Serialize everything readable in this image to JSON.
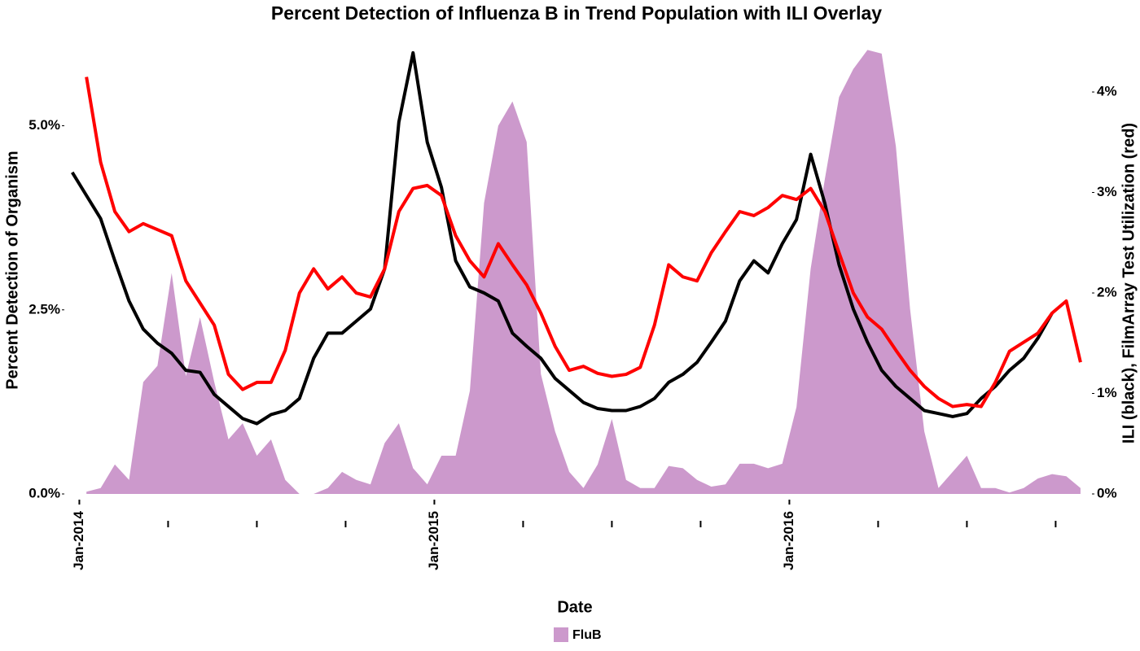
{
  "chart_data": {
    "type": "area-line",
    "title": "Percent Detection of Influenza B in Trend Population with ILI Overlay",
    "x_label": "Date",
    "y_label": "Percent Detection of Organism",
    "y2_label": "ILI (black), FilmArray Test Utilization (red)",
    "x": [
      2013.98,
      2014.02,
      2014.06,
      2014.1,
      2014.14,
      2014.18,
      2014.22,
      2014.26,
      2014.3,
      2014.34,
      2014.38,
      2014.42,
      2014.46,
      2014.5,
      2014.54,
      2014.58,
      2014.62,
      2014.66,
      2014.7,
      2014.74,
      2014.78,
      2014.82,
      2014.86,
      2014.9,
      2014.94,
      2014.98,
      2015.02,
      2015.06,
      2015.1,
      2015.14,
      2015.18,
      2015.22,
      2015.26,
      2015.3,
      2015.34,
      2015.38,
      2015.42,
      2015.46,
      2015.5,
      2015.54,
      2015.58,
      2015.62,
      2015.66,
      2015.7,
      2015.74,
      2015.78,
      2015.82,
      2015.86,
      2015.9,
      2015.94,
      2015.98,
      2016.02,
      2016.06,
      2016.1,
      2016.14,
      2016.18,
      2016.22,
      2016.26,
      2016.3,
      2016.34,
      2016.38,
      2016.42,
      2016.46,
      2016.5,
      2016.54,
      2016.58,
      2016.62,
      2016.66,
      2016.7,
      2016.74,
      2016.78,
      2016.82
    ],
    "series": [
      {
        "name": "FluB",
        "kind": "area",
        "color": "#cc99cc",
        "values": [
          null,
          0.03,
          0.08,
          0.4,
          0.19,
          1.52,
          1.74,
          3.0,
          1.6,
          2.4,
          1.52,
          0.74,
          0.96,
          0.52,
          0.74,
          0.19,
          0,
          0,
          0.08,
          0.3,
          0.19,
          0.13,
          0.69,
          0.96,
          0.35,
          0.13,
          0.52,
          0.52,
          1.4,
          3.95,
          5.0,
          5.33,
          4.78,
          1.63,
          0.85,
          0.3,
          0.08,
          0.4,
          1.02,
          0.19,
          0.08,
          0.08,
          0.38,
          0.35,
          0.19,
          0.1,
          0.13,
          0.41,
          0.41,
          0.35,
          0.41,
          1.18,
          3.06,
          4.28,
          5.39,
          5.77,
          6.03,
          5.98,
          4.72,
          2.51,
          0.85,
          0.08,
          0.3,
          0.52,
          0.08,
          0.08,
          0.02,
          0.08,
          0.21,
          0.27,
          0.24,
          0.08
        ]
      },
      {
        "kind": "line",
        "axis": "y2",
        "color": "#000000",
        "values": [
          3.2,
          2.97,
          2.74,
          2.32,
          1.92,
          1.64,
          1.5,
          1.4,
          1.23,
          1.21,
          0.99,
          0.87,
          0.75,
          0.7,
          0.79,
          0.83,
          0.95,
          1.35,
          1.6,
          1.6,
          1.72,
          1.84,
          2.24,
          3.7,
          4.39,
          3.5,
          3.05,
          2.32,
          2.06,
          2.0,
          1.92,
          1.6,
          1.47,
          1.35,
          1.15,
          1.03,
          0.91,
          0.85,
          0.83,
          0.83,
          0.87,
          0.95,
          1.11,
          1.19,
          1.31,
          1.51,
          1.72,
          2.12,
          2.32,
          2.2,
          2.49,
          2.73,
          3.38,
          2.89,
          2.28,
          1.84,
          1.51,
          1.23,
          1.07,
          0.95,
          0.83,
          0.8,
          0.77,
          0.8,
          0.95,
          1.07,
          1.23,
          1.35,
          1.55,
          1.8,
          null,
          null
        ]
      },
      {
        "kind": "line",
        "axis": "y2",
        "color": "#ff0000",
        "values": [
          null,
          4.15,
          3.3,
          2.81,
          2.61,
          2.69,
          2.63,
          2.57,
          2.12,
          1.9,
          1.68,
          1.19,
          1.04,
          1.11,
          1.11,
          1.43,
          2.0,
          2.24,
          2.04,
          2.16,
          2.0,
          1.96,
          2.24,
          2.81,
          3.04,
          3.07,
          2.97,
          2.57,
          2.32,
          2.16,
          2.49,
          2.28,
          2.08,
          1.8,
          1.47,
          1.23,
          1.27,
          1.2,
          1.17,
          1.19,
          1.26,
          1.68,
          2.28,
          2.16,
          2.12,
          2.4,
          2.61,
          2.81,
          2.77,
          2.85,
          2.97,
          2.93,
          3.04,
          2.81,
          2.4,
          2.0,
          1.76,
          1.64,
          1.43,
          1.23,
          1.07,
          0.95,
          0.87,
          0.89,
          0.87,
          1.11,
          1.42,
          1.51,
          1.6,
          1.8,
          1.92,
          1.31
        ]
      }
    ],
    "xlim": [
      2013.96,
      2016.85
    ],
    "xticks": [
      {
        "value": 2014,
        "label": "Jan-2014"
      },
      {
        "value": 2015,
        "label": "Jan-2015"
      },
      {
        "value": 2016,
        "label": "Jan-2016"
      }
    ],
    "xminorticks": [
      2014.25,
      2014.5,
      2014.75,
      2015.25,
      2015.5,
      2015.75,
      2016.25,
      2016.5,
      2016.75
    ],
    "ylim": [
      0,
      6.1
    ],
    "yticks": [
      {
        "value": 0,
        "label": "0.0%"
      },
      {
        "value": 2.5,
        "label": "2.5%"
      },
      {
        "value": 5,
        "label": "5.0%"
      }
    ],
    "y2lim": [
      0,
      4.47
    ],
    "y2ticks": [
      {
        "value": 0,
        "label": "0%"
      },
      {
        "value": 1,
        "label": "1%"
      },
      {
        "value": 2,
        "label": "2%"
      },
      {
        "value": 3,
        "label": "3%"
      },
      {
        "value": 4,
        "label": "4%"
      }
    ],
    "grid": false,
    "legend": "bottom"
  }
}
